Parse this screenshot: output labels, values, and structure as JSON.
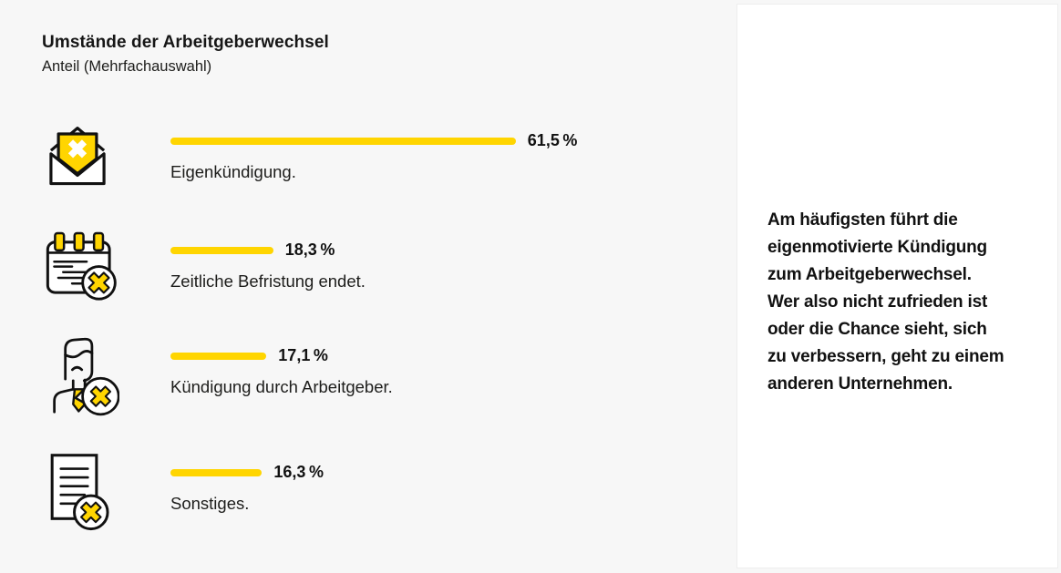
{
  "colors": {
    "accent": "#FFD500",
    "background": "#F7F7F7",
    "card": "#FFFFFF",
    "text": "#161616",
    "outline": "#111111"
  },
  "header": {
    "title": "Umstände der Arbeitgeberwechsel",
    "subtitle": "Anteil (Mehrfachauswahl)"
  },
  "chart_data": {
    "type": "bar",
    "orientation": "horizontal",
    "title": "Umstände der Arbeitgeberwechsel",
    "subtitle": "Anteil (Mehrfachauswahl)",
    "unit": "%",
    "xlim": [
      0,
      100
    ],
    "grid": false,
    "legend": false,
    "categories": [
      "Eigenkündigung.",
      "Zeitliche Befristung endet.",
      "Kündigung durch Arbeitgeber.",
      "Sonstiges."
    ],
    "values": [
      61.5,
      18.3,
      17.1,
      16.3
    ],
    "value_labels": [
      "61,5 %",
      "18,3 %",
      "17,1 %",
      "16,3 %"
    ],
    "icons": [
      "envelope-cancel-icon",
      "calendar-cancel-icon",
      "person-dismissal-icon",
      "document-cancel-icon"
    ]
  },
  "sidebar": {
    "text": "Am häufigsten führt die\neigenmotivierte Kündigung\nzum Arbeitgeberwechsel.\nWer also nicht zufrieden ist\noder die Chance sieht, sich\nzu verbessern, geht zu einem\nanderen Unternehmen."
  }
}
